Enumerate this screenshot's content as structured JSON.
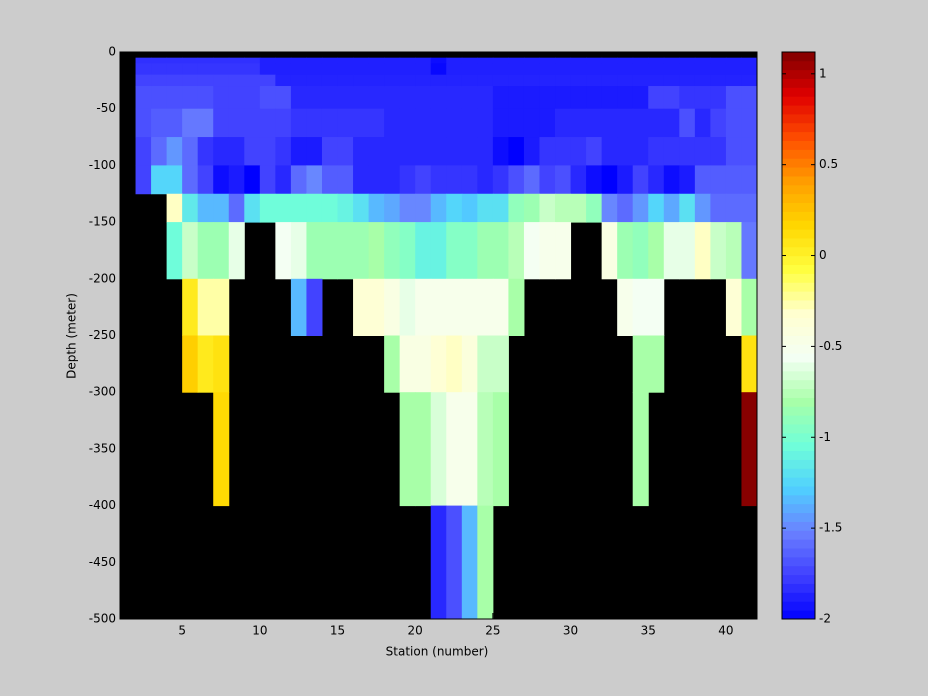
{
  "chart_data": {
    "type": "heatmap",
    "xlabel": "Station (number)",
    "ylabel": "Depth (meter)",
    "xlim": [
      1,
      42
    ],
    "ylim": [
      -500,
      0
    ],
    "xticks": [
      5,
      10,
      15,
      20,
      25,
      30,
      35,
      40
    ],
    "yticks": [
      0,
      -50,
      -100,
      -150,
      -200,
      -250,
      -300,
      -350,
      -400,
      -450,
      -500
    ],
    "x_edges": [
      1,
      2,
      3,
      4,
      5,
      6,
      7,
      8,
      9,
      10,
      11,
      12,
      13,
      14,
      15,
      16,
      17,
      18,
      19,
      20,
      21,
      22,
      23,
      24,
      25,
      26,
      27,
      28,
      29,
      30,
      31,
      32,
      33,
      34,
      35,
      36,
      37,
      38,
      39,
      40,
      41,
      42
    ],
    "y_edges": [
      0,
      -5,
      -10,
      -20,
      -30,
      -50,
      -75,
      -100,
      -125,
      -150,
      -200,
      -250,
      -300,
      -400,
      -500
    ],
    "z": [
      [
        null,
        null,
        null,
        null,
        null,
        null,
        null,
        null,
        null,
        null,
        null,
        null,
        null,
        null,
        null,
        null,
        null,
        null,
        null,
        null,
        null,
        null,
        null,
        null,
        null,
        null,
        null,
        null,
        null,
        null,
        null,
        null,
        null,
        null,
        null,
        null,
        null,
        null,
        null,
        null,
        null
      ],
      [
        null,
        -1.82,
        -1.82,
        -1.82,
        -1.82,
        -1.82,
        -1.82,
        -1.82,
        -1.82,
        -1.88,
        -1.88,
        -1.88,
        -1.88,
        -1.88,
        -1.88,
        -1.88,
        -1.88,
        -1.88,
        -1.88,
        -1.88,
        -1.95,
        -1.88,
        -1.88,
        -1.88,
        -1.88,
        -1.88,
        -1.88,
        -1.88,
        -1.88,
        -1.88,
        -1.88,
        -1.88,
        -1.88,
        -1.88,
        -1.88,
        -1.88,
        -1.88,
        -1.88,
        -1.88,
        -1.88,
        -1.88
      ],
      [
        null,
        -1.8,
        -1.8,
        -1.8,
        -1.8,
        -1.8,
        -1.8,
        -1.8,
        -1.8,
        -1.88,
        -1.88,
        -1.88,
        -1.88,
        -1.88,
        -1.88,
        -1.88,
        -1.88,
        -1.88,
        -1.88,
        -1.88,
        -1.97,
        -1.88,
        -1.88,
        -1.88,
        -1.88,
        -1.88,
        -1.88,
        -1.88,
        -1.88,
        -1.88,
        -1.88,
        -1.88,
        -1.88,
        -1.88,
        -1.88,
        -1.88,
        -1.88,
        -1.88,
        -1.88,
        -1.88,
        -1.88
      ],
      [
        null,
        -1.75,
        -1.75,
        -1.75,
        -1.75,
        -1.75,
        -1.75,
        -1.75,
        -1.75,
        -1.75,
        -1.87,
        -1.87,
        -1.87,
        -1.87,
        -1.87,
        -1.87,
        -1.87,
        -1.87,
        -1.87,
        -1.87,
        -1.87,
        -1.87,
        -1.87,
        -1.87,
        -1.87,
        -1.87,
        -1.87,
        -1.87,
        -1.87,
        -1.87,
        -1.87,
        -1.87,
        -1.87,
        -1.87,
        -1.87,
        -1.87,
        -1.87,
        -1.87,
        -1.87,
        -1.87,
        -1.87
      ],
      [
        null,
        -1.7,
        -1.7,
        -1.7,
        -1.7,
        -1.7,
        -1.75,
        -1.75,
        -1.75,
        -1.7,
        -1.7,
        -1.85,
        -1.85,
        -1.85,
        -1.85,
        -1.85,
        -1.85,
        -1.85,
        -1.85,
        -1.85,
        -1.85,
        -1.85,
        -1.85,
        -1.85,
        -1.9,
        -1.9,
        -1.9,
        -1.9,
        -1.9,
        -1.9,
        -1.9,
        -1.9,
        -1.9,
        -1.9,
        -1.75,
        -1.75,
        -1.8,
        -1.8,
        -1.8,
        -1.7,
        -1.7
      ],
      [
        null,
        -1.7,
        -1.65,
        -1.65,
        -1.55,
        -1.55,
        -1.75,
        -1.75,
        -1.75,
        -1.75,
        -1.75,
        -1.8,
        -1.8,
        -1.8,
        -1.8,
        -1.8,
        -1.8,
        -1.85,
        -1.85,
        -1.85,
        -1.85,
        -1.85,
        -1.85,
        -1.85,
        -1.9,
        -1.9,
        -1.9,
        -1.9,
        -1.85,
        -1.85,
        -1.85,
        -1.85,
        -1.85,
        -1.85,
        -1.85,
        -1.85,
        -1.7,
        -1.85,
        -1.75,
        -1.7,
        -1.7
      ],
      [
        null,
        -1.75,
        -1.6,
        -1.45,
        -1.6,
        -1.8,
        -1.85,
        -1.85,
        -1.75,
        -1.75,
        -1.8,
        -1.9,
        -1.9,
        -1.75,
        -1.75,
        -1.85,
        -1.85,
        -1.85,
        -1.85,
        -1.85,
        -1.85,
        -1.85,
        -1.85,
        -1.85,
        -1.95,
        -2.0,
        -1.9,
        -1.8,
        -1.8,
        -1.8,
        -1.75,
        -1.85,
        -1.85,
        -1.85,
        -1.8,
        -1.8,
        -1.8,
        -1.8,
        -1.8,
        -1.7,
        -1.7
      ],
      [
        null,
        -1.75,
        -1.25,
        -1.25,
        -1.6,
        -1.75,
        -1.95,
        -1.9,
        -2.0,
        -1.75,
        -1.85,
        -1.6,
        -1.5,
        -1.65,
        -1.65,
        -1.85,
        -1.85,
        -1.85,
        -1.8,
        -1.75,
        -1.8,
        -1.8,
        -1.8,
        -1.85,
        -1.8,
        -1.7,
        -1.6,
        -1.75,
        -1.7,
        -1.85,
        -1.95,
        -2.0,
        -1.9,
        -1.75,
        -1.85,
        -1.95,
        -1.9,
        -1.65,
        -1.65,
        -1.65,
        -1.65
      ],
      [
        null,
        null,
        null,
        -0.3,
        -1.15,
        -1.35,
        -1.35,
        -1.6,
        -1.2,
        -1.05,
        -1.05,
        -1.05,
        -1.05,
        -1.05,
        -1.1,
        -1.2,
        -1.35,
        -1.4,
        -1.5,
        -1.5,
        -1.35,
        -1.25,
        -1.3,
        -1.2,
        -1.2,
        -0.9,
        -0.85,
        -0.7,
        -0.75,
        -0.75,
        -0.9,
        -1.5,
        -1.6,
        -1.45,
        -1.25,
        -1.4,
        -1.2,
        -1.45,
        -1.6,
        -1.6,
        -1.6
      ],
      [
        null,
        null,
        null,
        -1.05,
        -0.7,
        -0.85,
        -0.85,
        -0.6,
        null,
        null,
        -0.55,
        -0.6,
        -0.85,
        -0.85,
        -0.85,
        -0.85,
        -0.8,
        -0.9,
        -0.95,
        -1.1,
        -1.1,
        -0.95,
        -0.95,
        -0.85,
        -0.85,
        -0.75,
        -0.55,
        -0.5,
        -0.5,
        null,
        null,
        -0.45,
        -0.85,
        -0.9,
        -0.8,
        -0.6,
        -0.6,
        -0.3,
        -0.7,
        -0.75,
        -1.55
      ],
      [
        null,
        null,
        null,
        null,
        0.05,
        -0.25,
        -0.25,
        null,
        null,
        null,
        null,
        -1.35,
        -1.75,
        null,
        null,
        -0.35,
        -0.35,
        -0.45,
        -0.6,
        -0.5,
        -0.5,
        -0.5,
        -0.5,
        -0.5,
        -0.5,
        -0.8,
        null,
        null,
        null,
        null,
        null,
        null,
        -0.5,
        -0.55,
        -0.55,
        null,
        null,
        null,
        null,
        -0.35,
        -0.8
      ],
      [
        null,
        null,
        null,
        null,
        0.2,
        0.05,
        0.1,
        null,
        null,
        null,
        null,
        null,
        null,
        null,
        null,
        null,
        null,
        -0.8,
        -0.45,
        -0.45,
        -0.35,
        -0.3,
        -0.4,
        -0.7,
        -0.7,
        null,
        null,
        null,
        null,
        null,
        null,
        null,
        null,
        -0.8,
        -0.8,
        null,
        null,
        null,
        null,
        null,
        0.1
      ],
      [
        null,
        null,
        null,
        null,
        null,
        null,
        0.15,
        null,
        null,
        null,
        null,
        null,
        null,
        null,
        null,
        null,
        null,
        null,
        -0.8,
        -0.8,
        -0.65,
        -0.5,
        -0.5,
        -0.75,
        -0.8,
        null,
        null,
        null,
        null,
        null,
        null,
        null,
        null,
        -0.8,
        null,
        null,
        null,
        null,
        null,
        null,
        1.1
      ],
      [
        null,
        null,
        null,
        null,
        null,
        null,
        null,
        null,
        null,
        null,
        null,
        null,
        null,
        null,
        null,
        null,
        null,
        null,
        null,
        null,
        -1.85,
        -1.7,
        -1.35,
        -0.8,
        null,
        null,
        null,
        null,
        null,
        null,
        null,
        null,
        null,
        null,
        null,
        null,
        null,
        null,
        null,
        null,
        null
      ]
    ],
    "colorbar": {
      "lim": [
        -2,
        1.12
      ],
      "ticks": [
        -2,
        -1.5,
        -1,
        -0.5,
        0,
        0.5,
        1
      ],
      "colormap": [
        "#0000ff",
        "#4040ff",
        "#6a80ff",
        "#50d0ff",
        "#70ffd8",
        "#a8ffa8",
        "#f4fff4",
        "#ffffd0",
        "#ffff40",
        "#ffd800",
        "#ffa000",
        "#ff5000",
        "#e00000",
        "#800000"
      ]
    },
    "background": "#000000"
  }
}
